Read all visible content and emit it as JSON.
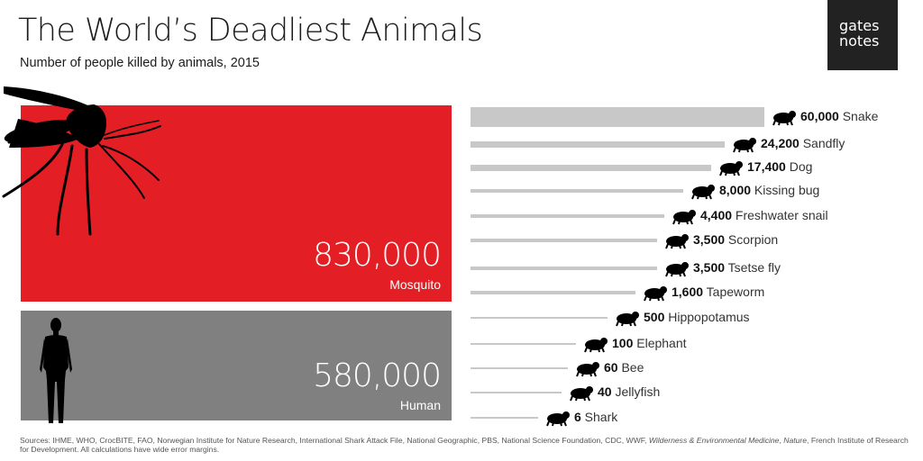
{
  "title": "The World’s Deadliest Animals",
  "subtitle": "Number of people killed by animals, 2015",
  "logo": {
    "line1": "gates",
    "line2": "notes"
  },
  "colors": {
    "mosquito": "#e31e25",
    "human": "#808080",
    "bar": "#c8c8c8",
    "icon": "#000000"
  },
  "chart_data": {
    "type": "bar",
    "title": "The World’s Deadliest Animals",
    "subtitle": "Number of people killed by animals, 2015",
    "featured": [
      {
        "name": "Mosquito",
        "value": 830000,
        "value_label": "830,000",
        "icon": "mosquito-icon"
      },
      {
        "name": "Human",
        "value": 580000,
        "value_label": "580,000",
        "icon": "human-icon"
      }
    ],
    "rows": [
      {
        "name": "Snake",
        "value": 60000,
        "value_label": "60,000",
        "icon": "snake-icon"
      },
      {
        "name": "Sandfly",
        "value": 24200,
        "value_label": "24,200",
        "icon": "sandfly-icon"
      },
      {
        "name": "Dog",
        "value": 17400,
        "value_label": "17,400",
        "icon": "dog-icon"
      },
      {
        "name": "Kissing bug",
        "value": 8000,
        "value_label": "8,000",
        "icon": "kissing-bug-icon"
      },
      {
        "name": "Freshwater snail",
        "value": 4400,
        "value_label": "4,400",
        "icon": "snail-icon"
      },
      {
        "name": "Scorpion",
        "value": 3500,
        "value_label": "3,500",
        "icon": "scorpion-icon"
      },
      {
        "name": "Tsetse fly",
        "value": 3500,
        "value_label": "3,500",
        "icon": "tsetse-fly-icon"
      },
      {
        "name": "Tapeworm",
        "value": 1600,
        "value_label": "1,600",
        "icon": "tapeworm-icon"
      },
      {
        "name": "Hippopotamus",
        "value": 500,
        "value_label": "500",
        "icon": "hippopotamus-icon"
      },
      {
        "name": "Elephant",
        "value": 100,
        "value_label": "100",
        "icon": "elephant-icon"
      },
      {
        "name": "Bee",
        "value": 60,
        "value_label": "60",
        "icon": "bee-icon"
      },
      {
        "name": "Jellyfish",
        "value": 40,
        "value_label": "40",
        "icon": "jellyfish-icon"
      },
      {
        "name": "Shark",
        "value": 6,
        "value_label": "6",
        "icon": "shark-icon"
      }
    ]
  },
  "sources_prefix": "Sources: IHME, WHO, CrocBITE, FAO, Norwegian Institute for Nature Research, International Shark Attack File, National Geographic, PBS, National Science Foundation, CDC, WWF, ",
  "sources_italic1": "Wilderness & Environmental Medicine",
  "sources_sep": ", ",
  "sources_italic2": "Nature",
  "sources_suffix": ", French Institute of Research for Development. All calculations have wide error margins."
}
